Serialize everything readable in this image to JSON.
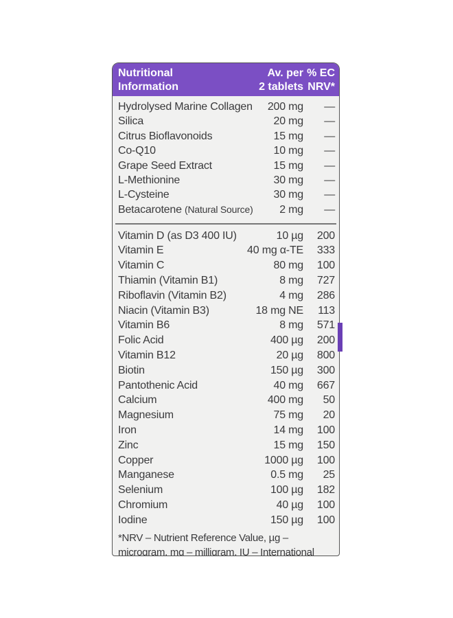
{
  "header": {
    "title_line1": "Nutritional",
    "title_line2": "Information",
    "amount_line1": "Av. per",
    "amount_line2": "2 tablets",
    "nrv_line1": "% EC",
    "nrv_line2": "NRV*"
  },
  "group1": [
    {
      "name": "Hydrolysed Marine Collagen",
      "amount": "200 mg",
      "nrv": "—"
    },
    {
      "name": "Silica",
      "amount": "20 mg",
      "nrv": "—"
    },
    {
      "name": "Citrus Bioflavonoids",
      "amount": "15 mg",
      "nrv": "—"
    },
    {
      "name": "Co-Q10",
      "amount": "10 mg",
      "nrv": "—"
    },
    {
      "name": "Grape Seed Extract",
      "amount": "15 mg",
      "nrv": "—"
    },
    {
      "name": "L-Methionine",
      "amount": "30 mg",
      "nrv": "—"
    },
    {
      "name": "L-Cysteine",
      "amount": "30 mg",
      "nrv": "—"
    },
    {
      "name": "Betacarotene",
      "note": "(Natural Source)",
      "amount": "2 mg",
      "nrv": "—"
    }
  ],
  "group2": [
    {
      "name": "Vitamin D (as D3 400 IU)",
      "amount": "10 µg",
      "nrv": "200"
    },
    {
      "name": "Vitamin E",
      "amount": "40 mg α-TE",
      "nrv": "333"
    },
    {
      "name": "Vitamin C",
      "amount": "80 mg",
      "nrv": "100"
    },
    {
      "name": "Thiamin (Vitamin B1)",
      "amount": "8 mg",
      "nrv": "727"
    },
    {
      "name": "Riboflavin (Vitamin B2)",
      "amount": "4 mg",
      "nrv": "286"
    },
    {
      "name": "Niacin (Vitamin B3)",
      "amount": "18 mg NE",
      "nrv": "113"
    },
    {
      "name": "Vitamin B6",
      "amount": "8 mg",
      "nrv": "571"
    },
    {
      "name": "Folic Acid",
      "amount": "400 µg",
      "nrv": "200"
    },
    {
      "name": "Vitamin B12",
      "amount": "20 µg",
      "nrv": "800"
    },
    {
      "name": "Biotin",
      "amount": "150 µg",
      "nrv": "300"
    },
    {
      "name": "Pantothenic Acid",
      "amount": "40 mg",
      "nrv": "667"
    },
    {
      "name": "Calcium",
      "amount": "400 mg",
      "nrv": "50"
    },
    {
      "name": "Magnesium",
      "amount": "75 mg",
      "nrv": "20"
    },
    {
      "name": "Iron",
      "amount": "14 mg",
      "nrv": "100"
    },
    {
      "name": "Zinc",
      "amount": "15 mg",
      "nrv": "150"
    },
    {
      "name": "Copper",
      "amount": "1000 µg",
      "nrv": "100"
    },
    {
      "name": "Manganese",
      "amount": "0.5 mg",
      "nrv": "25"
    },
    {
      "name": "Selenium",
      "amount": "100 µg",
      "nrv": "182"
    },
    {
      "name": "Chromium",
      "amount": "40 µg",
      "nrv": "100"
    },
    {
      "name": "Iodine",
      "amount": "150 µg",
      "nrv": "100"
    }
  ],
  "footnote": "*NRV – Nutrient Reference Value, µg – microgram, mg – milligram, IU – International Units",
  "colors": {
    "header": "#7b4fc4",
    "text": "#3a3a3c",
    "panel": "#f1f1f0"
  }
}
